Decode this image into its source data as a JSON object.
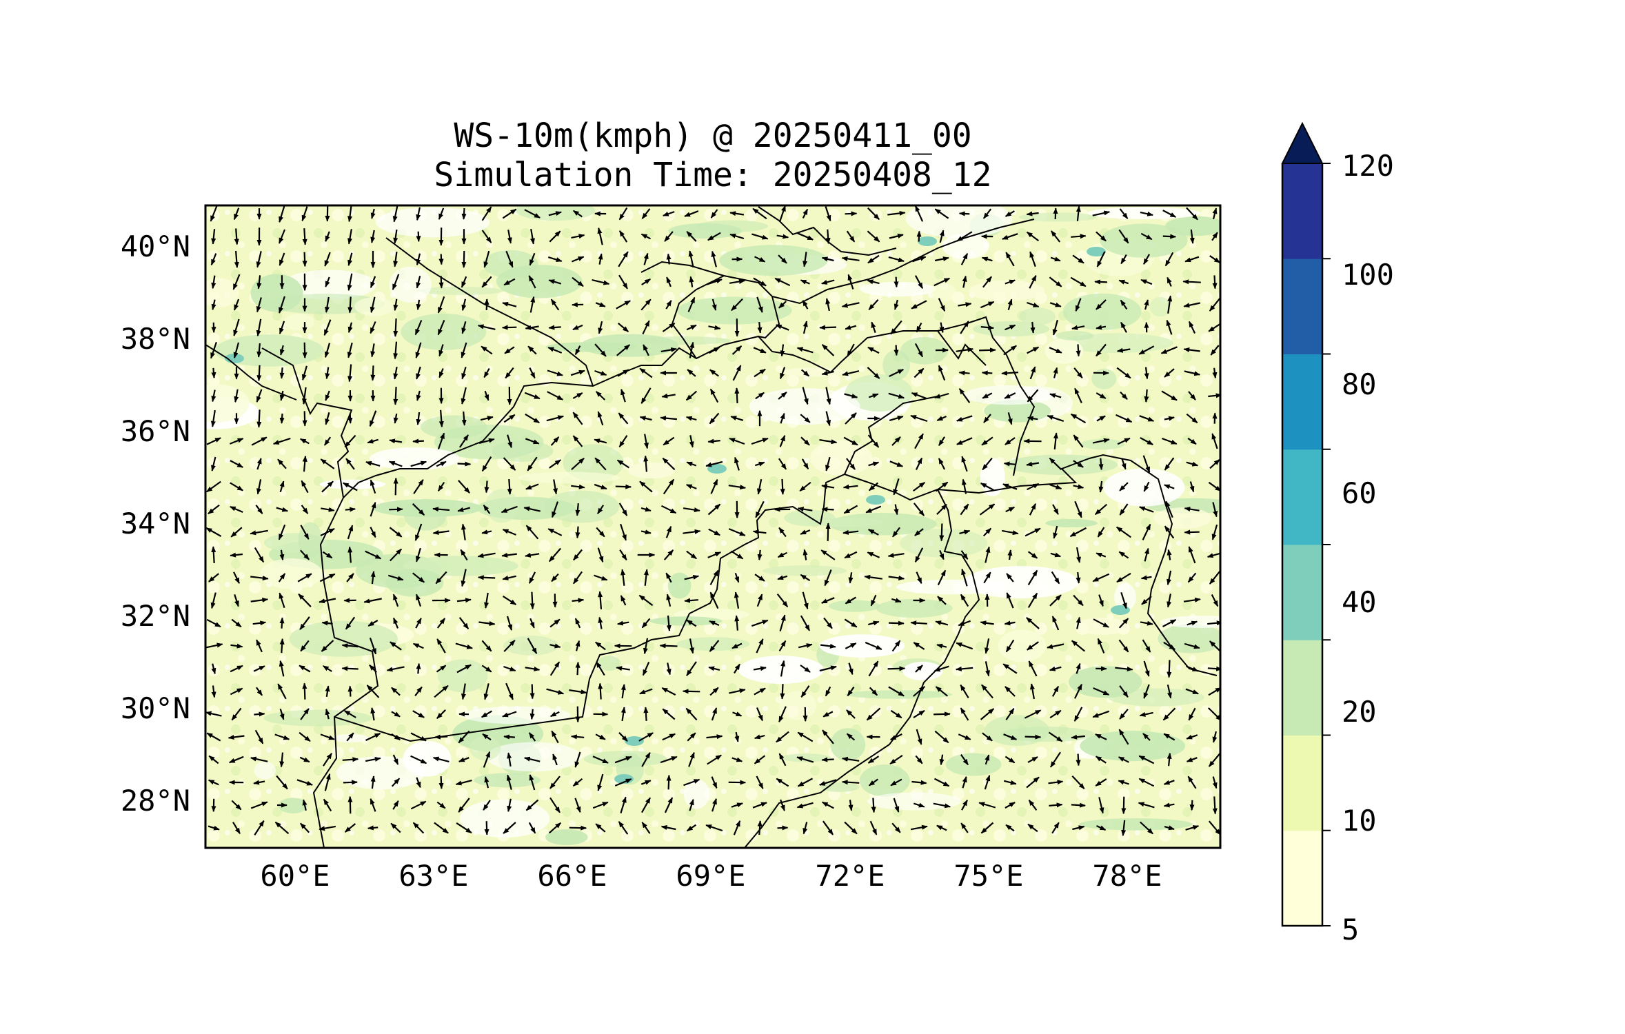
{
  "title": {
    "line1": "WS-10m(kmph) @ 20250411_00",
    "line2": "Simulation Time: 20250408_12"
  },
  "map": {
    "lon_range": [
      58,
      80
    ],
    "lat_range": [
      27,
      41
    ],
    "lon_ticks": [
      "60°E",
      "63°E",
      "66°E",
      "69°E",
      "72°E",
      "75°E",
      "78°E"
    ],
    "lat_ticks": [
      "40°N",
      "38°N",
      "36°N",
      "34°N",
      "32°N",
      "30°N",
      "28°N"
    ],
    "field": "WS-10m",
    "units": "kmph",
    "quiver": "wind direction arrows",
    "dominant_speed_range": "5-40"
  },
  "colorbar": {
    "levels": [
      "5",
      "10",
      "20",
      "40",
      "60",
      "80",
      "100",
      "120"
    ],
    "colors": [
      "#ffffd9",
      "#edf8b1",
      "#c7e9b4",
      "#7fcdbb",
      "#41b6c4",
      "#1d91c0",
      "#225ea8",
      "#253494"
    ],
    "extend_color": "#081d58",
    "extend": "max"
  }
}
